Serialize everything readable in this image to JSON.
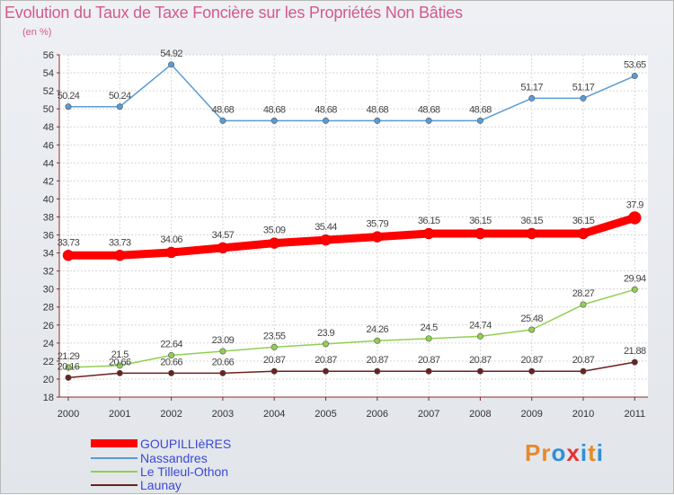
{
  "chart_data": {
    "type": "line",
    "title": "Evolution du Taux de Taxe Foncière sur les Propriétés Non Bâties",
    "subtitle": "(en %)",
    "xlabel": "",
    "ylabel": "",
    "ylim": [
      18,
      56
    ],
    "yticks": [
      18,
      20,
      22,
      24,
      26,
      28,
      30,
      32,
      34,
      36,
      38,
      40,
      42,
      44,
      46,
      48,
      50,
      52,
      54,
      56
    ],
    "categories": [
      "2000",
      "2001",
      "2002",
      "2003",
      "2004",
      "2005",
      "2006",
      "2007",
      "2008",
      "2009",
      "2010",
      "2011"
    ],
    "series": [
      {
        "name": "GOUPILLIèRES",
        "color": "#ff0000",
        "values": [
          33.73,
          33.73,
          34.06,
          34.57,
          35.09,
          35.44,
          35.79,
          36.15,
          36.15,
          36.15,
          36.15,
          37.9
        ],
        "labels": [
          "33.73",
          "33.73",
          "34.06",
          "34.57",
          "35.09",
          "35.44",
          "35.79",
          "36.15",
          "36.15",
          "36.15",
          "36.15",
          "37.9"
        ]
      },
      {
        "name": "Nassandres",
        "color": "#5b9bd5",
        "values": [
          50.24,
          50.24,
          54.92,
          48.68,
          48.68,
          48.68,
          48.68,
          48.68,
          48.68,
          51.17,
          51.17,
          53.65
        ],
        "labels": [
          "50.24",
          "50.24",
          "54.92",
          "48.68",
          "48.68",
          "48.68",
          "48.68",
          "48.68",
          "48.68",
          "51.17",
          "51.17",
          "53.65"
        ]
      },
      {
        "name": "Le Tilleul-Othon",
        "color": "#90d050",
        "values": [
          21.29,
          21.5,
          22.64,
          23.09,
          23.55,
          23.9,
          24.26,
          24.5,
          24.74,
          25.48,
          28.27,
          29.94
        ],
        "labels": [
          "21.29",
          "21.5",
          "22.64",
          "23.09",
          "23.55",
          "23.9",
          "24.26",
          "24.5",
          "24.74",
          "25.48",
          "28.27",
          "29.94"
        ]
      },
      {
        "name": "Launay",
        "color": "#6b2020",
        "values": [
          20.16,
          20.66,
          20.66,
          20.66,
          20.87,
          20.87,
          20.87,
          20.87,
          20.87,
          20.87,
          20.87,
          21.88
        ],
        "labels": [
          "20.16",
          "20.66",
          "20.66",
          "20.66",
          "20.87",
          "20.87",
          "20.87",
          "20.87",
          "20.87",
          "20.87",
          "20.87",
          "21.88"
        ]
      }
    ],
    "legend": [
      "GOUPILLIèRES",
      "Nassandres",
      "Le Tilleul-Othon",
      "Launay"
    ]
  },
  "logo": {
    "letters": [
      "P",
      "r",
      "o",
      "x",
      "i",
      "t",
      "i"
    ],
    "colors": [
      "#e58a2a",
      "#e58a2a",
      "#2f8fd8",
      "#e53232",
      "#2f8fd8",
      "#e58a2a",
      "#2f8fd8"
    ]
  }
}
